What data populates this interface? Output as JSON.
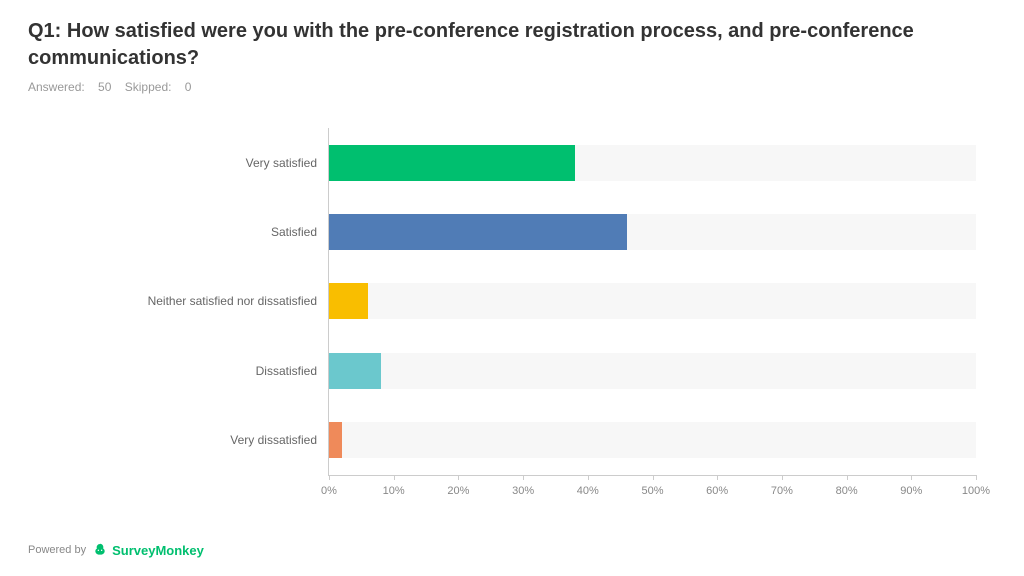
{
  "title": "Q1: How satisfied were you with the pre-conference registration process, and pre-conference communications?",
  "meta": {
    "answered_label": "Answered:",
    "answered_value": "50",
    "skipped_label": "Skipped:",
    "skipped_value": "0"
  },
  "chart": {
    "type": "horizontal-bar",
    "xlim": [
      0,
      100
    ],
    "xtick_step": 10,
    "xtick_suffix": "%",
    "bar_bg_color": "#f7f7f7",
    "axis_color": "#cccccc",
    "label_color": "#666666",
    "label_fontsize": 12,
    "tick_color": "#888888",
    "tick_fontsize": 11,
    "categories": [
      {
        "label": "Very satisfied",
        "value": 38,
        "color": "#00bf6f"
      },
      {
        "label": "Satisfied",
        "value": 46,
        "color": "#507cb6"
      },
      {
        "label": "Neither satisfied nor dissatisfied",
        "value": 6,
        "color": "#f9be00"
      },
      {
        "label": "Dissatisfied",
        "value": 8,
        "color": "#6bc8cd"
      },
      {
        "label": "Very dissatisfied",
        "value": 2,
        "color": "#ef8a5a"
      }
    ]
  },
  "footer": {
    "powered_by": "Powered by",
    "brand": "SurveyMonkey"
  }
}
